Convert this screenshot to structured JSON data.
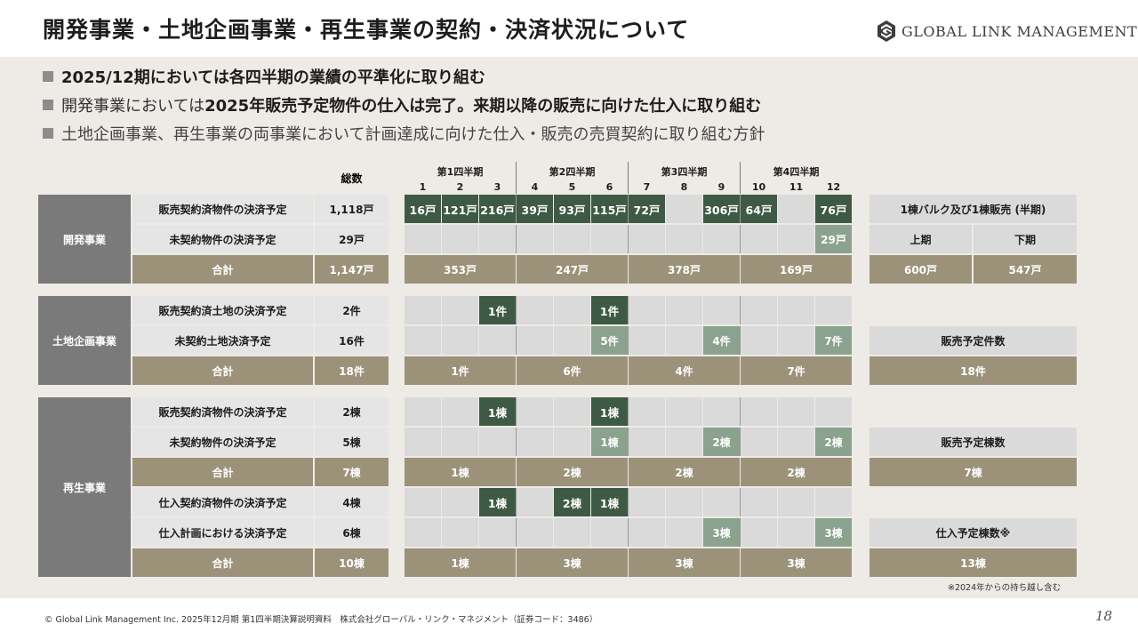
{
  "header": {
    "title": "開発事業・土地企画事業・再生事業の契約・決済状況について",
    "logo_text": "GLOBAL LINK MANAGEMENT"
  },
  "bullets": {
    "b1": "2025/12期においては各四半期の業績の平準化に取り組む",
    "b2_pre": "開発事業においては",
    "b2_bold": "2025年販売予定物件の仕入は完了。来期以降の販売に向けた仕入に取り組む",
    "b3": "土地企画事業、再生事業の両事業において計画達成に向けた仕入・販売の売買契約に取り組む方針"
  },
  "table": {
    "total_header": "総数",
    "quarters": [
      "第1四半期",
      "第2四半期",
      "第3四半期",
      "第4四半期"
    ],
    "months": [
      "1",
      "2",
      "3",
      "4",
      "5",
      "6",
      "7",
      "8",
      "9",
      "10",
      "11",
      "12"
    ],
    "sections": [
      {
        "name": "開発事業",
        "rows": [
          {
            "label": "販売契約済物件の決済予定",
            "total": "1,118戸",
            "type": "month",
            "cells": [
              {
                "m": 1,
                "v": "16戸",
                "s": "dark"
              },
              {
                "m": 2,
                "v": "121戸",
                "s": "dark"
              },
              {
                "m": 3,
                "v": "216戸",
                "s": "dark"
              },
              {
                "m": 4,
                "v": "39戸",
                "s": "dark"
              },
              {
                "m": 5,
                "v": "93戸",
                "s": "dark"
              },
              {
                "m": 6,
                "v": "115戸",
                "s": "dark"
              },
              {
                "m": 7,
                "v": "72戸",
                "s": "dark"
              },
              {
                "m": 9,
                "v": "306戸",
                "s": "dark"
              },
              {
                "m": 10,
                "v": "64戸",
                "s": "dark"
              },
              {
                "m": 12,
                "v": "76戸",
                "s": "dark"
              }
            ]
          },
          {
            "label": "未契約物件の決済予定",
            "total": "29戸",
            "type": "month",
            "cells": [
              {
                "m": 12,
                "v": "29戸",
                "s": "light"
              }
            ]
          },
          {
            "label": "合計",
            "total": "1,147戸",
            "type": "sum",
            "qvalues": [
              "353戸",
              "247戸",
              "378戸",
              "169戸"
            ]
          }
        ]
      },
      {
        "name": "土地企画事業",
        "rows": [
          {
            "label": "販売契約済土地の決済予定",
            "total": "2件",
            "type": "month",
            "cells": [
              {
                "m": 3,
                "v": "1件",
                "s": "dark"
              },
              {
                "m": 6,
                "v": "1件",
                "s": "dark"
              }
            ]
          },
          {
            "label": "未契約土地決済予定",
            "total": "16件",
            "type": "month",
            "cells": [
              {
                "m": 6,
                "v": "5件",
                "s": "light"
              },
              {
                "m": 9,
                "v": "4件",
                "s": "light"
              },
              {
                "m": 12,
                "v": "7件",
                "s": "light"
              }
            ]
          },
          {
            "label": "合計",
            "total": "18件",
            "type": "sum",
            "qvalues": [
              "1件",
              "6件",
              "4件",
              "7件"
            ]
          }
        ]
      },
      {
        "name": "再生事業",
        "rows": [
          {
            "label": "販売契約済物件の決済予定",
            "total": "2棟",
            "type": "month",
            "cells": [
              {
                "m": 3,
                "v": "1棟",
                "s": "dark"
              },
              {
                "m": 6,
                "v": "1棟",
                "s": "dark"
              }
            ]
          },
          {
            "label": "未契約物件の決済予定",
            "total": "5棟",
            "type": "month",
            "cells": [
              {
                "m": 6,
                "v": "1棟",
                "s": "light"
              },
              {
                "m": 9,
                "v": "2棟",
                "s": "light"
              },
              {
                "m": 12,
                "v": "2棟",
                "s": "light"
              }
            ]
          },
          {
            "label": "合計",
            "total": "7棟",
            "type": "sum",
            "qvalues": [
              "1棟",
              "2棟",
              "2棟",
              "2棟"
            ]
          },
          {
            "label": "仕入契約済物件の決済予定",
            "total": "4棟",
            "type": "month",
            "cells": [
              {
                "m": 3,
                "v": "1棟",
                "s": "dark"
              },
              {
                "m": 5,
                "v": "2棟",
                "s": "dark"
              },
              {
                "m": 6,
                "v": "1棟",
                "s": "dark"
              }
            ]
          },
          {
            "label": "仕入計画における決済予定",
            "total": "6棟",
            "type": "month",
            "cells": [
              {
                "m": 9,
                "v": "3棟",
                "s": "light"
              },
              {
                "m": 12,
                "v": "3棟",
                "s": "light"
              }
            ]
          },
          {
            "label": "合計",
            "total": "10棟",
            "type": "sum",
            "qvalues": [
              "1棟",
              "3棟",
              "3棟",
              "3棟"
            ]
          }
        ]
      }
    ]
  },
  "right_panel": {
    "dev_title": "1棟バルク及び1棟販売 (半期)",
    "dev_h1": "上期",
    "dev_h2": "下期",
    "dev_v1": "600戸",
    "dev_v2": "547戸",
    "land_title": "販売予定件数",
    "land_value": "18件",
    "regen_title1": "販売予定棟数",
    "regen_value1": "7棟",
    "regen_title2": "仕入予定棟数※",
    "regen_value2": "13棟"
  },
  "note": "※2024年からの持ち越し含む",
  "footer": "© Global Link Management Inc. 2025年12月期 第1四半期決算説明資料　株式会社グローバル・リンク・マネジメント（証券コード：3486）",
  "page_number": "18",
  "colors": {
    "segment": "#7a7a7a",
    "label_cell": "#e5e5e5",
    "sum": "#9c927a",
    "month_cell": "#dadada",
    "contracted": "#3f5a44",
    "planned": "#8ba28e",
    "background": "#eeebe6"
  }
}
